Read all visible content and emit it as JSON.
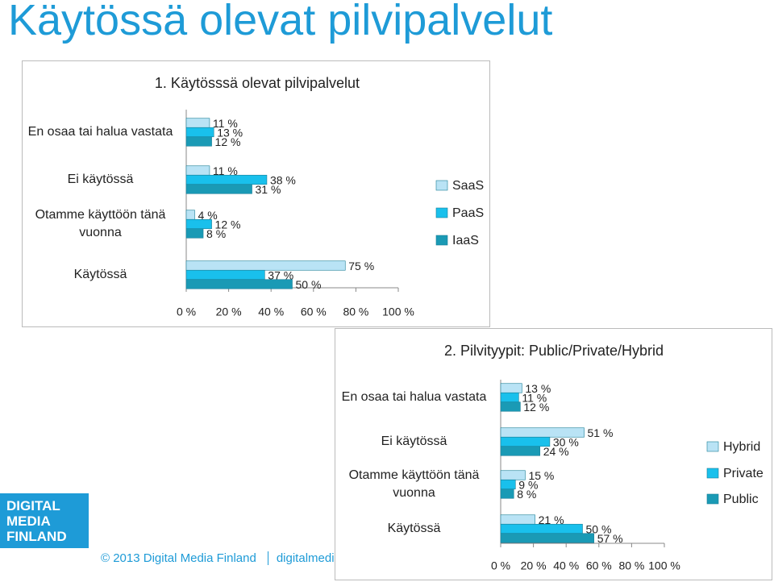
{
  "title": "Käytössä olevat pilvipalvelut",
  "logo": [
    "DIGITAL",
    "MEDIA",
    "FINLAND"
  ],
  "footer": {
    "copyright": "© 2013 Digital Media Finland",
    "url": "digitalmedia.fi"
  },
  "chart_data": [
    {
      "type": "hbar",
      "title": "1. Käytösssä olevat pilvipalvelut",
      "categories": [
        "En osaa tai halua vastata",
        "Ei käytössä",
        "Otamme käyttöön tänä vuonna",
        "Käytössä"
      ],
      "series": [
        {
          "name": "SaaS",
          "color": "#b9e3f5",
          "values": [
            11,
            11,
            4,
            75
          ],
          "value_labels": [
            "11 %",
            "11 %",
            "4 %",
            "75 %"
          ]
        },
        {
          "name": "PaaS",
          "color": "#19c0ec",
          "values": [
            13,
            38,
            12,
            37
          ],
          "value_labels": [
            "13 %",
            "38 %",
            "12 %",
            "37 %"
          ]
        },
        {
          "name": "IaaS",
          "color": "#1a9ab5",
          "values": [
            12,
            31,
            8,
            50
          ],
          "value_labels": [
            "12 %",
            "31 %",
            "8 %",
            "50 %"
          ]
        }
      ],
      "xlim": [
        0,
        100
      ],
      "xticks": [
        {
          "value": 0,
          "label": "0 %"
        },
        {
          "value": 20,
          "label": "20 %"
        },
        {
          "value": 40,
          "label": "40 %"
        },
        {
          "value": 60,
          "label": "60 %"
        },
        {
          "value": 80,
          "label": "80 %"
        },
        {
          "value": 100,
          "label": "100 %"
        }
      ],
      "legend": "right"
    },
    {
      "type": "hbar",
      "title": "2. Pilvityypit: Public/Private/Hybrid",
      "categories": [
        "En osaa tai halua vastata",
        "Ei käytössä",
        "Otamme käyttöön tänä vuonna",
        "Käytössä"
      ],
      "series": [
        {
          "name": "Hybrid",
          "color": "#b9e3f5",
          "values": [
            13,
            51,
            15,
            21
          ],
          "value_labels": [
            "13 %",
            "51 %",
            "15 %",
            "21 %"
          ]
        },
        {
          "name": "Private",
          "color": "#19c0ec",
          "values": [
            11,
            30,
            9,
            50
          ],
          "value_labels": [
            "11 %",
            "30 %",
            "9 %",
            "50 %"
          ]
        },
        {
          "name": "Public",
          "color": "#1a9ab5",
          "values": [
            12,
            24,
            8,
            57
          ],
          "value_labels": [
            "12 %",
            "24 %",
            "8 %",
            "57 %"
          ]
        }
      ],
      "xlim": [
        0,
        100
      ],
      "xticks": [
        {
          "value": 0,
          "label": "0 %"
        },
        {
          "value": 20,
          "label": "20 %"
        },
        {
          "value": 40,
          "label": "40 %"
        },
        {
          "value": 60,
          "label": "60 %"
        },
        {
          "value": 80,
          "label": "80 %"
        },
        {
          "value": 100,
          "label": "100 %"
        }
      ],
      "legend": "right"
    }
  ]
}
